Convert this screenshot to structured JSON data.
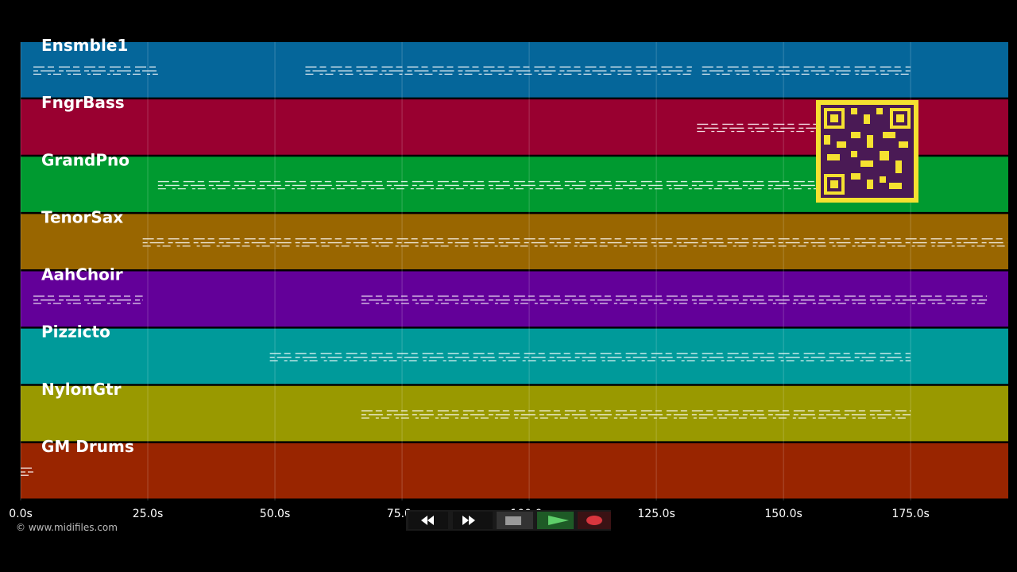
{
  "axis": {
    "xlim": [
      0,
      194.2
    ],
    "xticks": [
      {
        "value": 0,
        "label": "0.0s"
      },
      {
        "value": 25,
        "label": "25.0s"
      },
      {
        "value": 50,
        "label": "50.0s"
      },
      {
        "value": 75,
        "label": "75.0s"
      },
      {
        "value": 100,
        "label": "100.0s"
      },
      {
        "value": 125,
        "label": "125.0s"
      },
      {
        "value": 150,
        "label": "150.0s"
      },
      {
        "value": 175,
        "label": "175.0s"
      }
    ]
  },
  "tracks": [
    {
      "name": "Ensmble1",
      "color": "#05669a",
      "spans": [
        [
          2.5,
          27
        ],
        [
          56,
          132
        ],
        [
          134,
          175
        ]
      ]
    },
    {
      "name": "FngrBass",
      "color": "#990030",
      "spans": [
        [
          133,
          157
        ]
      ]
    },
    {
      "name": "GrandPno",
      "color": "#009a30",
      "spans": [
        [
          27,
          157
        ]
      ]
    },
    {
      "name": "TenorSax",
      "color": "#996600",
      "spans": [
        [
          24,
          194
        ]
      ]
    },
    {
      "name": "AahChoir",
      "color": "#630099",
      "spans": [
        [
          2.5,
          24
        ],
        [
          67,
          190
        ]
      ]
    },
    {
      "name": "Pizzicto",
      "color": "#009a9a",
      "spans": [
        [
          49,
          175
        ]
      ]
    },
    {
      "name": "NylonGtr",
      "color": "#999900",
      "spans": [
        [
          67,
          175
        ]
      ]
    },
    {
      "name": "GM Drums",
      "color": "#992500",
      "spans": [
        [
          0,
          2.5
        ]
      ]
    }
  ],
  "footer": "© www.midifiles.com"
}
